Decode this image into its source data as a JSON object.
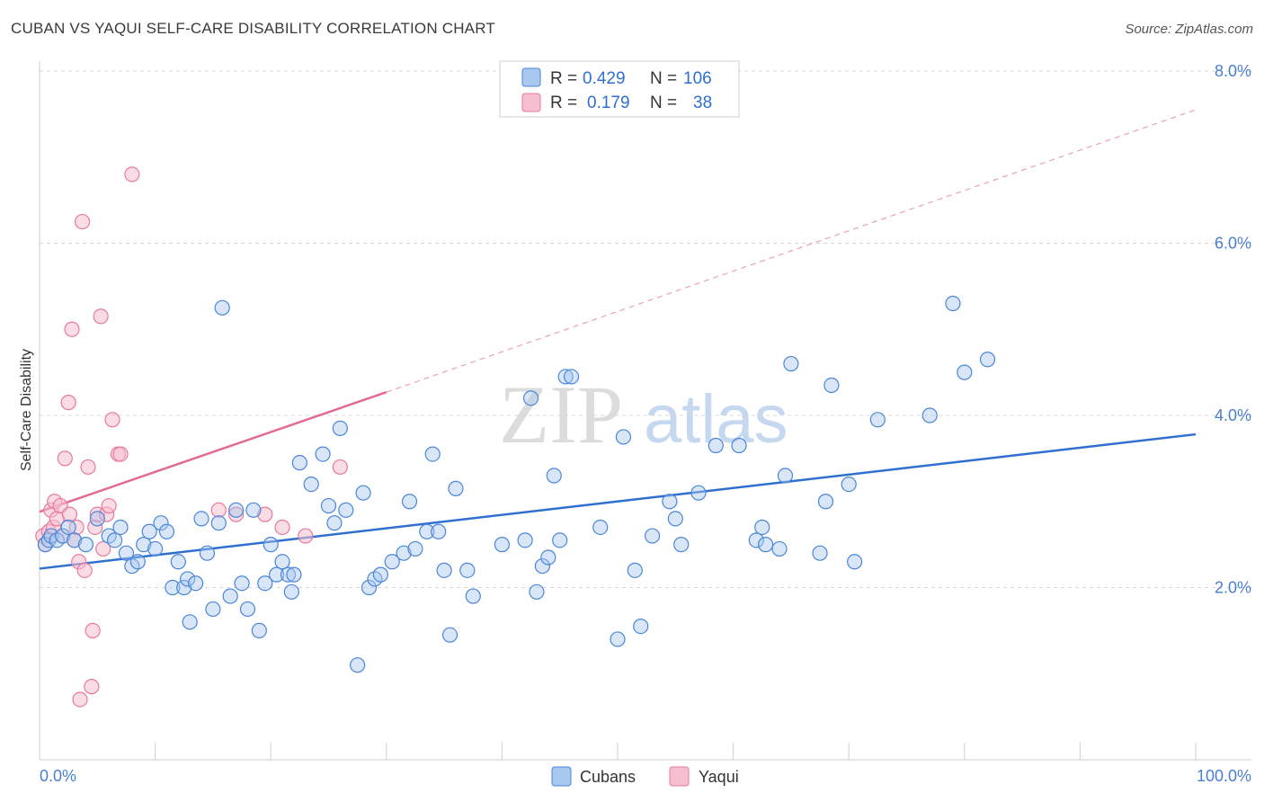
{
  "title": "CUBAN VS YAQUI SELF-CARE DISABILITY CORRELATION CHART",
  "source": "Source: ZipAtlas.com",
  "watermark": {
    "zip": "ZIP",
    "atlas": "atlas"
  },
  "colors": {
    "cubans": "#4a86d8",
    "cubans_fill": "#a9c8f0",
    "yaqui": "#e87a9c",
    "yaqui_fill": "#f6bfd0",
    "tick_blue": "#4a7fd0",
    "grid": "#d8d8d8"
  },
  "legend": {
    "rows": [
      {
        "r_label": "R =",
        "r_value": "0.429",
        "n_label": "N =",
        "n_value": "106"
      },
      {
        "r_label": "R =",
        "r_value": "0.179",
        "n_label": "N =",
        "n_value": "38"
      }
    ]
  },
  "chart_data": {
    "type": "scatter",
    "ylabel": "Self-Care Disability",
    "x_range": [
      0,
      100
    ],
    "y_range": [
      0,
      8.0
    ],
    "x_tick_labels": [
      "0.0%",
      "100.0%"
    ],
    "y_ticks": [
      2.0,
      4.0,
      6.0,
      8.0
    ],
    "y_tick_labels": [
      "2.0%",
      "4.0%",
      "6.0%",
      "8.0%"
    ],
    "grid": "horizontal dashed",
    "legend_position": "top-center",
    "series": [
      {
        "name": "Cubans",
        "trend": {
          "x0": 0,
          "y0": 2.22,
          "x1": 100,
          "y1": 3.78
        },
        "points": [
          [
            0.5,
            2.5
          ],
          [
            0.8,
            2.55
          ],
          [
            1.0,
            2.6
          ],
          [
            1.5,
            2.55
          ],
          [
            2.0,
            2.6
          ],
          [
            2.5,
            2.7
          ],
          [
            3.0,
            2.55
          ],
          [
            4.0,
            2.5
          ],
          [
            5.0,
            2.8
          ],
          [
            6.0,
            2.6
          ],
          [
            6.5,
            2.55
          ],
          [
            7.0,
            2.7
          ],
          [
            7.5,
            2.4
          ],
          [
            8.0,
            2.25
          ],
          [
            8.5,
            2.3
          ],
          [
            9.0,
            2.5
          ],
          [
            9.5,
            2.65
          ],
          [
            10.0,
            2.45
          ],
          [
            10.5,
            2.75
          ],
          [
            11.0,
            2.65
          ],
          [
            11.5,
            2.0
          ],
          [
            12.0,
            2.3
          ],
          [
            12.5,
            2.0
          ],
          [
            12.8,
            2.1
          ],
          [
            13.0,
            1.6
          ],
          [
            13.5,
            2.05
          ],
          [
            14.0,
            2.8
          ],
          [
            14.5,
            2.4
          ],
          [
            15.0,
            1.75
          ],
          [
            15.5,
            2.75
          ],
          [
            15.8,
            5.25
          ],
          [
            16.5,
            1.9
          ],
          [
            17.0,
            2.9
          ],
          [
            17.5,
            2.05
          ],
          [
            18.0,
            1.75
          ],
          [
            18.5,
            2.9
          ],
          [
            19.0,
            1.5
          ],
          [
            19.5,
            2.05
          ],
          [
            20.0,
            2.5
          ],
          [
            20.5,
            2.15
          ],
          [
            21.0,
            2.3
          ],
          [
            21.5,
            2.15
          ],
          [
            21.8,
            1.95
          ],
          [
            22.0,
            2.15
          ],
          [
            22.5,
            3.45
          ],
          [
            23.5,
            3.2
          ],
          [
            24.5,
            3.55
          ],
          [
            25.0,
            2.95
          ],
          [
            25.5,
            2.75
          ],
          [
            26.0,
            3.85
          ],
          [
            26.5,
            2.9
          ],
          [
            27.5,
            1.1
          ],
          [
            28.0,
            3.1
          ],
          [
            28.5,
            2.0
          ],
          [
            29.0,
            2.1
          ],
          [
            29.5,
            2.15
          ],
          [
            30.5,
            2.3
          ],
          [
            31.5,
            2.4
          ],
          [
            32.0,
            3.0
          ],
          [
            32.5,
            2.45
          ],
          [
            33.5,
            2.65
          ],
          [
            34.0,
            3.55
          ],
          [
            34.5,
            2.65
          ],
          [
            35.0,
            2.2
          ],
          [
            35.5,
            1.45
          ],
          [
            36.0,
            3.15
          ],
          [
            37.0,
            2.2
          ],
          [
            37.5,
            1.9
          ],
          [
            40.0,
            2.5
          ],
          [
            42.0,
            2.55
          ],
          [
            42.5,
            4.2
          ],
          [
            43.0,
            1.95
          ],
          [
            43.5,
            2.25
          ],
          [
            44.0,
            2.35
          ],
          [
            44.5,
            3.3
          ],
          [
            45.0,
            2.55
          ],
          [
            45.5,
            4.45
          ],
          [
            46.0,
            4.45
          ],
          [
            48.5,
            2.7
          ],
          [
            50.0,
            1.4
          ],
          [
            50.5,
            3.75
          ],
          [
            51.5,
            2.2
          ],
          [
            52.0,
            1.55
          ],
          [
            53.0,
            2.6
          ],
          [
            54.5,
            3.0
          ],
          [
            55.0,
            2.8
          ],
          [
            55.5,
            2.5
          ],
          [
            57.0,
            3.1
          ],
          [
            58.5,
            3.65
          ],
          [
            60.5,
            3.65
          ],
          [
            62.0,
            2.55
          ],
          [
            62.5,
            2.7
          ],
          [
            62.8,
            2.5
          ],
          [
            64.0,
            2.45
          ],
          [
            64.5,
            3.3
          ],
          [
            65.0,
            4.6
          ],
          [
            67.5,
            2.4
          ],
          [
            68.0,
            3.0
          ],
          [
            68.5,
            4.35
          ],
          [
            70.0,
            3.2
          ],
          [
            70.5,
            2.3
          ],
          [
            72.5,
            3.95
          ],
          [
            77.0,
            4.0
          ],
          [
            79.0,
            5.3
          ],
          [
            80.0,
            4.5
          ],
          [
            82.0,
            4.65
          ]
        ]
      },
      {
        "name": "Yaqui",
        "trend": {
          "x0": 0,
          "y0": 2.88,
          "x1": 30,
          "y1": 4.27,
          "dash_x1": 100,
          "dash_y1": 7.55
        },
        "points": [
          [
            0.3,
            2.6
          ],
          [
            0.5,
            2.5
          ],
          [
            0.8,
            2.65
          ],
          [
            1.0,
            2.9
          ],
          [
            1.2,
            2.7
          ],
          [
            1.3,
            3.0
          ],
          [
            1.5,
            2.8
          ],
          [
            1.8,
            2.95
          ],
          [
            2.0,
            2.6
          ],
          [
            2.2,
            3.5
          ],
          [
            2.5,
            4.15
          ],
          [
            2.6,
            2.85
          ],
          [
            2.8,
            5.0
          ],
          [
            3.0,
            2.55
          ],
          [
            3.2,
            2.7
          ],
          [
            3.4,
            2.3
          ],
          [
            3.5,
            0.7
          ],
          [
            3.7,
            6.25
          ],
          [
            3.9,
            2.2
          ],
          [
            4.2,
            3.4
          ],
          [
            4.5,
            0.85
          ],
          [
            4.6,
            1.5
          ],
          [
            4.8,
            2.7
          ],
          [
            5.0,
            2.85
          ],
          [
            5.3,
            5.15
          ],
          [
            5.5,
            2.45
          ],
          [
            5.8,
            2.85
          ],
          [
            6.0,
            2.95
          ],
          [
            6.3,
            3.95
          ],
          [
            6.8,
            3.55
          ],
          [
            7.0,
            3.55
          ],
          [
            8.0,
            6.8
          ],
          [
            15.5,
            2.9
          ],
          [
            17.0,
            2.85
          ],
          [
            19.5,
            2.85
          ],
          [
            21.0,
            2.7
          ],
          [
            23.0,
            2.6
          ],
          [
            26.0,
            3.4
          ]
        ]
      }
    ]
  }
}
